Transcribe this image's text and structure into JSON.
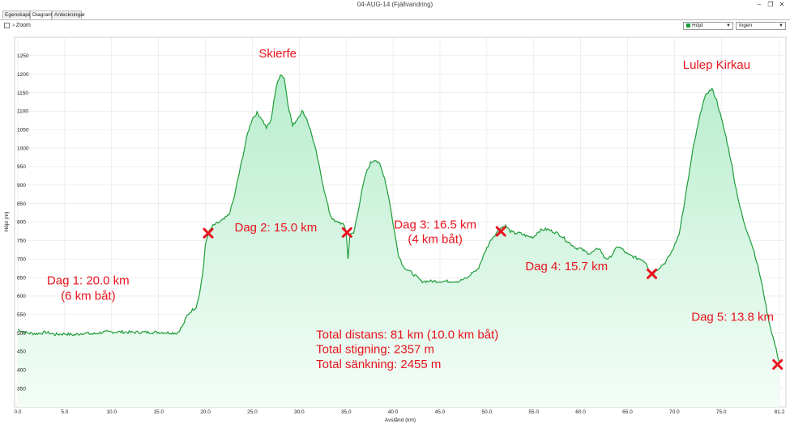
{
  "window": {
    "title": "04-AUG-14 (Fjällvandring)",
    "minimize": "–",
    "maximize": "❐",
    "close": "✕"
  },
  "tabs": [
    {
      "label": "Egenskaper"
    },
    {
      "label": "Diagram"
    },
    {
      "label": "Anteckningar"
    }
  ],
  "toolbar": {
    "zoom_label": "Zoom",
    "series_select": "Höjd",
    "secondary_select": "Ingen"
  },
  "colors": {
    "line": "#1f9d3a",
    "fill_top": "#b9edce",
    "fill_bottom": "#f4fdf7",
    "annotation": "#e8141e",
    "plot_bg": "#ffffff"
  },
  "chart_data": {
    "type": "area",
    "xlabel": "Avstånd (km)",
    "ylabel": "Höjd (m)",
    "xlim": [
      0,
      81.2
    ],
    "ylim": [
      300,
      1300
    ],
    "x_ticks": [
      "0.0",
      "5.0",
      "10.0",
      "15.0",
      "20.0",
      "25.0",
      "30.0",
      "35.0",
      "40.0",
      "45.0",
      "50.0",
      "55.0",
      "60.0",
      "65.0",
      "70.0",
      "75.0",
      "81.2"
    ],
    "y_ticks": [
      "350",
      "400",
      "450",
      "500",
      "550",
      "600",
      "650",
      "700",
      "750",
      "800",
      "850",
      "900",
      "950",
      "1000",
      "1050",
      "1100",
      "1150",
      "1200",
      "1250"
    ],
    "grid": true,
    "series": [
      {
        "points": [
          [
            0,
            510
          ],
          [
            1,
            500
          ],
          [
            2,
            498
          ],
          [
            3,
            502
          ],
          [
            4,
            496
          ],
          [
            5,
            498
          ],
          [
            6,
            495
          ],
          [
            7,
            500
          ],
          [
            8,
            497
          ],
          [
            9,
            502
          ],
          [
            10,
            503
          ],
          [
            11,
            503
          ],
          [
            12,
            502
          ],
          [
            13,
            502
          ],
          [
            14,
            502
          ],
          [
            15,
            502
          ],
          [
            16,
            501
          ],
          [
            17,
            500
          ],
          [
            17.6,
            520
          ],
          [
            18,
            545
          ],
          [
            18.5,
            560
          ],
          [
            19,
            570
          ],
          [
            19.4,
            610
          ],
          [
            19.8,
            680
          ],
          [
            20,
            740
          ],
          [
            20.3,
            770
          ],
          [
            20.8,
            790
          ],
          [
            21.5,
            800
          ],
          [
            22,
            808
          ],
          [
            22.5,
            820
          ],
          [
            23,
            860
          ],
          [
            23.5,
            920
          ],
          [
            24,
            980
          ],
          [
            24.5,
            1040
          ],
          [
            25,
            1080
          ],
          [
            25.5,
            1095
          ],
          [
            26,
            1080
          ],
          [
            26.5,
            1055
          ],
          [
            27,
            1075
          ],
          [
            27.3,
            1130
          ],
          [
            27.7,
            1180
          ],
          [
            28,
            1200
          ],
          [
            28.4,
            1190
          ],
          [
            28.8,
            1120
          ],
          [
            29.3,
            1060
          ],
          [
            29.8,
            1080
          ],
          [
            30.3,
            1100
          ],
          [
            30.8,
            1080
          ],
          [
            31.3,
            1040
          ],
          [
            31.8,
            990
          ],
          [
            32.3,
            930
          ],
          [
            32.8,
            870
          ],
          [
            33.3,
            820
          ],
          [
            33.8,
            800
          ],
          [
            34.3,
            800
          ],
          [
            34.8,
            790
          ],
          [
            35,
            775
          ],
          [
            35.2,
            700
          ],
          [
            35.4,
            765
          ],
          [
            35.8,
            770
          ],
          [
            36.2,
            820
          ],
          [
            36.6,
            875
          ],
          [
            37.1,
            930
          ],
          [
            37.6,
            960
          ],
          [
            38.1,
            970
          ],
          [
            38.6,
            955
          ],
          [
            39.1,
            920
          ],
          [
            39.6,
            860
          ],
          [
            40.1,
            780
          ],
          [
            40.6,
            710
          ],
          [
            41.1,
            680
          ],
          [
            41.6,
            670
          ],
          [
            42.1,
            660
          ],
          [
            42.6,
            650
          ],
          [
            43,
            640
          ],
          [
            44,
            640
          ],
          [
            45,
            640
          ],
          [
            46,
            640
          ],
          [
            47,
            640
          ],
          [
            48,
            650
          ],
          [
            48.5,
            665
          ],
          [
            49,
            670
          ],
          [
            49.5,
            700
          ],
          [
            50,
            730
          ],
          [
            50.5,
            755
          ],
          [
            51,
            770
          ],
          [
            51.5,
            785
          ],
          [
            52,
            790
          ],
          [
            52.5,
            775
          ],
          [
            53,
            770
          ],
          [
            53.5,
            770
          ],
          [
            54,
            765
          ],
          [
            54.5,
            760
          ],
          [
            55,
            760
          ],
          [
            55.5,
            775
          ],
          [
            56,
            780
          ],
          [
            56.5,
            780
          ],
          [
            57,
            775
          ],
          [
            57.5,
            770
          ],
          [
            58,
            762
          ],
          [
            58.5,
            750
          ],
          [
            59,
            740
          ],
          [
            59.5,
            730
          ],
          [
            60,
            728
          ],
          [
            60.5,
            720
          ],
          [
            61,
            715
          ],
          [
            61.5,
            722
          ],
          [
            62,
            730
          ],
          [
            62.5,
            705
          ],
          [
            63,
            700
          ],
          [
            63.5,
            718
          ],
          [
            64,
            735
          ],
          [
            64.5,
            725
          ],
          [
            65,
            712
          ],
          [
            65.5,
            708
          ],
          [
            66,
            702
          ],
          [
            66.5,
            700
          ],
          [
            67,
            690
          ],
          [
            67.3,
            670
          ],
          [
            67.6,
            660
          ],
          [
            68,
            668
          ],
          [
            68.5,
            680
          ],
          [
            69,
            690
          ],
          [
            69.5,
            710
          ],
          [
            70,
            735
          ],
          [
            70.5,
            770
          ],
          [
            71,
            840
          ],
          [
            71.5,
            920
          ],
          [
            72,
            1000
          ],
          [
            72.5,
            1060
          ],
          [
            73,
            1120
          ],
          [
            73.5,
            1150
          ],
          [
            74,
            1160
          ],
          [
            74.5,
            1130
          ],
          [
            75,
            1080
          ],
          [
            75.5,
            1030
          ],
          [
            76,
            970
          ],
          [
            76.5,
            900
          ],
          [
            77,
            840
          ],
          [
            77.5,
            790
          ],
          [
            78,
            760
          ],
          [
            78.5,
            720
          ],
          [
            79,
            670
          ],
          [
            79.5,
            610
          ],
          [
            80,
            540
          ],
          [
            80.5,
            490
          ],
          [
            81.2,
            420
          ]
        ]
      }
    ],
    "annotations": [
      {
        "text": "Skierfe",
        "x": 27.7,
        "y": 1245
      },
      {
        "text": "Lulep Kirkau",
        "x": 74.5,
        "y": 1215
      },
      {
        "text": "Dag 1: 20.0 km",
        "x": 7.5,
        "y": 632
      },
      {
        "text": "(6 km båt)",
        "x": 7.5,
        "y": 590
      },
      {
        "text": "Dag 2: 15.0 km",
        "x": 27.5,
        "y": 775
      },
      {
        "text": "Dag 3: 16.5 km",
        "x": 44.5,
        "y": 783
      },
      {
        "text": "(4 km båt)",
        "x": 44.5,
        "y": 743
      },
      {
        "text": "Dag 4: 15.7 km",
        "x": 58.5,
        "y": 670
      },
      {
        "text": "Dag 5: 13.8 km",
        "x": 76.2,
        "y": 533
      },
      {
        "text": "Total distans: 81 km (10.0 km båt)",
        "x": 31.8,
        "y": 485
      },
      {
        "text": "Total stigning: 2357 m",
        "x": 31.8,
        "y": 445
      },
      {
        "text": "Total sänkning: 2455 m",
        "x": 31.8,
        "y": 405
      }
    ],
    "day_markers": [
      {
        "x": 20.3,
        "y": 770
      },
      {
        "x": 35.1,
        "y": 772
      },
      {
        "x": 51.5,
        "y": 775
      },
      {
        "x": 67.6,
        "y": 660
      },
      {
        "x": 81.0,
        "y": 415
      }
    ]
  }
}
